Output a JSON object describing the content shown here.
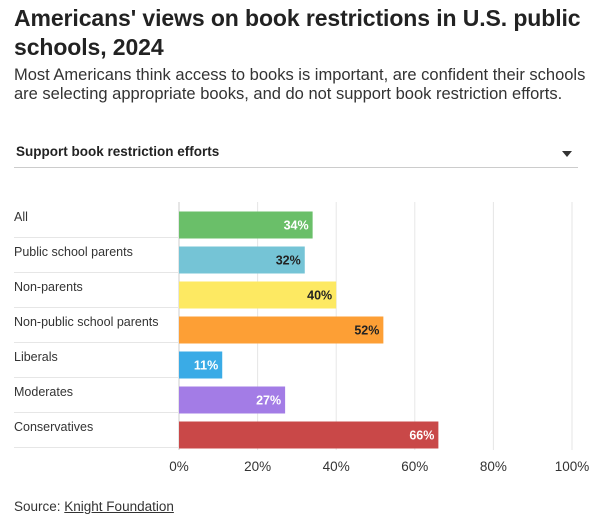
{
  "header": {
    "title": "Americans' views on book restrictions in U.S. public schools, 2024",
    "subtitle": "Most Americans think access to books is important, are confident their schools are selecting appropriate books, and do not support book restriction efforts."
  },
  "dropdown": {
    "selected": "Support book restriction efforts"
  },
  "chart_data": {
    "type": "bar",
    "orientation": "horizontal",
    "title": "Support book restriction efforts",
    "categories": [
      "All",
      "Public school parents",
      "Non-parents",
      "Non-public school parents",
      "Liberals",
      "Moderates",
      "Conservatives"
    ],
    "values": [
      34,
      32,
      40,
      52,
      11,
      27,
      66
    ],
    "data_labels": [
      "34%",
      "32%",
      "40%",
      "52%",
      "11%",
      "27%",
      "66%"
    ],
    "colors": [
      "#6abf69",
      "#75c4d6",
      "#fde962",
      "#fd9f35",
      "#3aabe6",
      "#a37ce6",
      "#c94848"
    ],
    "label_colors": [
      "#ffffff",
      "#222222",
      "#222222",
      "#222222",
      "#ffffff",
      "#ffffff",
      "#ffffff"
    ],
    "xlim": [
      0,
      100
    ],
    "xticks": [
      0,
      20,
      40,
      60,
      80,
      100
    ],
    "xtick_labels": [
      "0%",
      "20%",
      "40%",
      "60%",
      "80%",
      "100%"
    ],
    "xlabel": "",
    "ylabel": "",
    "grid": true
  },
  "footer": {
    "source_prefix": "Source: ",
    "source_link": "Knight Foundation"
  }
}
